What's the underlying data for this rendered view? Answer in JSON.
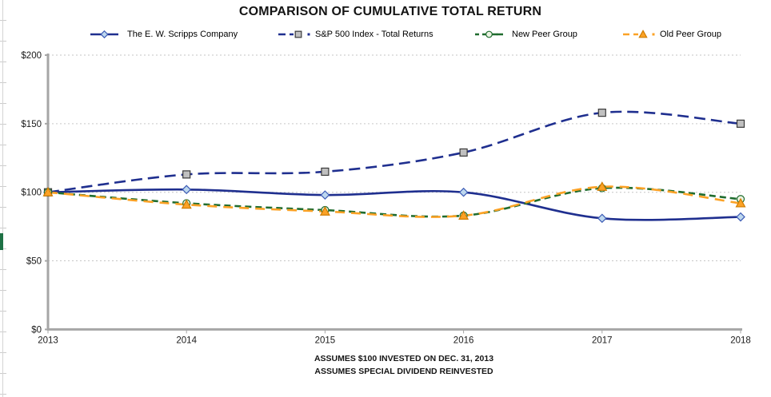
{
  "page": {
    "title": "COMPARISON OF CUMULATIVE TOTAL RETURN",
    "footnote_line1": "ASSUMES $100 INVESTED ON DEC. 31, 2013",
    "footnote_line2": "ASSUMES SPECIAL DIVIDEND REINVESTED"
  },
  "chart_data": {
    "type": "line",
    "title": "COMPARISON OF CUMULATIVE TOTAL RETURN",
    "x": [
      "2013",
      "2014",
      "2015",
      "2016",
      "2017",
      "2018"
    ],
    "series": [
      {
        "name": "The E. W. Scripps Company",
        "values": [
          100,
          102,
          98,
          100,
          81,
          82
        ],
        "color": "#1F2F8F",
        "style": "solid",
        "marker": "diamond",
        "marker_fill": "#BDD7EE",
        "marker_stroke": "#3C5BB5",
        "legend_dot": false
      },
      {
        "name": "S&P 500 Index - Total Returns",
        "values": [
          100,
          113,
          115,
          129,
          158,
          150
        ],
        "color": "#1F2F8F",
        "style": "long-dash",
        "marker": "square",
        "marker_fill": "#C0C0C0",
        "marker_stroke": "#3A3A3A",
        "legend_dot": true
      },
      {
        "name": "New Peer Group",
        "values": [
          100,
          92,
          87,
          83,
          103,
          95
        ],
        "color": "#1F6C2E",
        "style": "dash",
        "marker": "circle",
        "marker_fill": "#EAF3E2",
        "marker_stroke": "#1F6C2E",
        "legend_dot": false
      },
      {
        "name": "Old Peer Group",
        "values": [
          100,
          91,
          86,
          83,
          104,
          92
        ],
        "color": "#FBA226",
        "style": "dash-dot",
        "marker": "triangle",
        "marker_fill": "#FBA226",
        "marker_stroke": "#D07C00",
        "legend_dot": true
      }
    ],
    "ylim": [
      0,
      200
    ],
    "yticks": [
      "$0",
      "$50",
      "$100",
      "$150",
      "$200"
    ],
    "ytick_values": [
      0,
      50,
      100,
      150,
      200
    ],
    "grid": "horizontal-dotted",
    "legend_position": "top",
    "axis_color": "#A6A6A6",
    "gridline_color": "#C6C6C6"
  }
}
